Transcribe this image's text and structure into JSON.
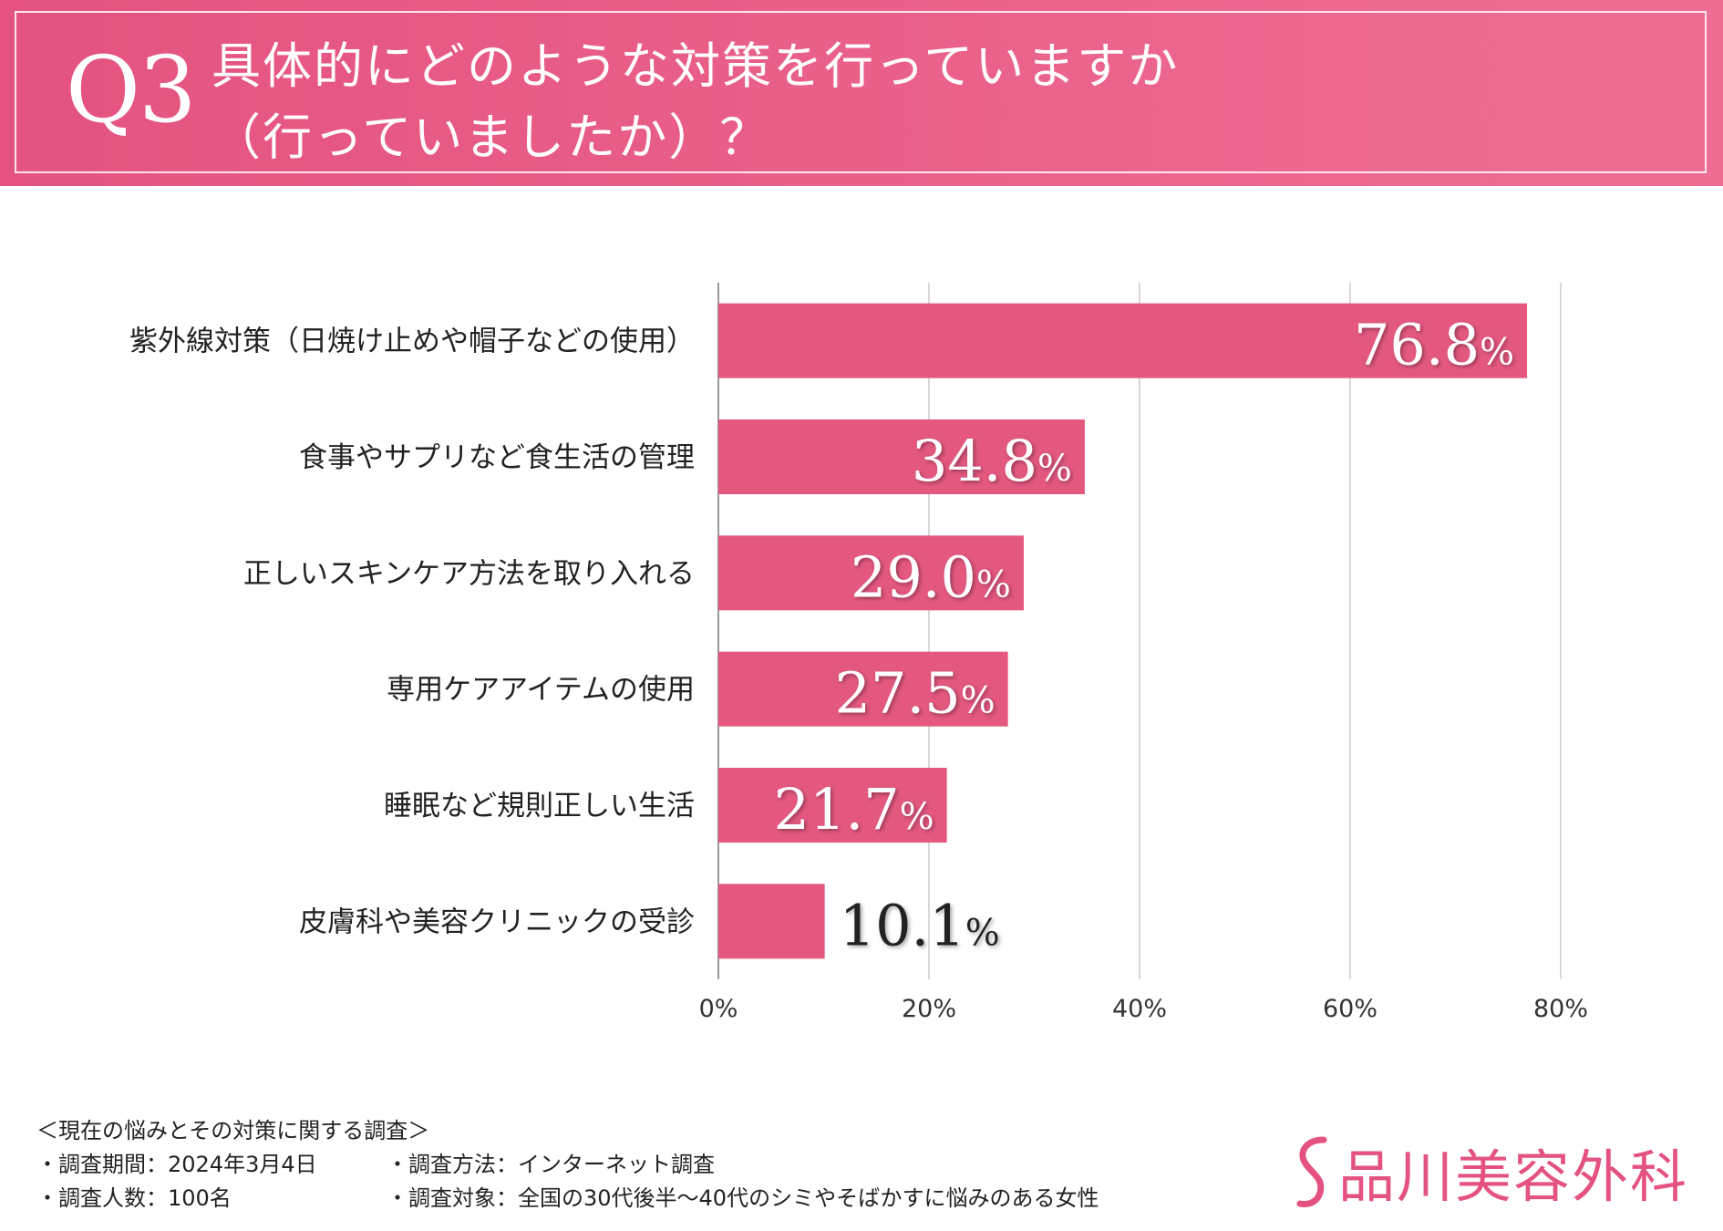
{
  "header": {
    "q_number": "Q3",
    "title_line1": "具体的にどのような対策を行っていますか",
    "title_line2": "（行っていましたか）？"
  },
  "chart_data": {
    "type": "bar",
    "orientation": "horizontal",
    "categories": [
      "紫外線対策（日焼け止めや帽子などの使用）",
      "食事やサプリなど食生活の管理",
      "正しいスキンケア方法を取り入れる",
      "専用ケアアイテムの使用",
      "睡眠など規則正しい生活",
      "皮膚科や美容クリニックの受診"
    ],
    "values": [
      76.8,
      34.8,
      29.0,
      27.5,
      21.7,
      10.1
    ],
    "value_labels": [
      "76.8",
      "34.8",
      "29.0",
      "27.5",
      "21.7",
      "10.1"
    ],
    "value_suffix": "%",
    "xlim": [
      0,
      80
    ],
    "xticks": [
      0,
      20,
      40,
      60,
      80
    ],
    "xtick_labels": [
      "0%",
      "20%",
      "40%",
      "60%",
      "80%"
    ],
    "grid": true,
    "bar_color": "#e4587f",
    "title": "",
    "xlabel": "",
    "ylabel": ""
  },
  "footer": {
    "heading": "＜現在の悩みとその対策に関する調査＞",
    "period": "・調査期間：2024年3月4日",
    "method": "・調査方法：インターネット調査",
    "count": "・調査人数：100名",
    "target": "・調査対象：全国の30代後半～40代のシミやそばかすに悩みのある女性"
  },
  "logo": {
    "text": "品川美容外科"
  },
  "colors": {
    "accent": "#e4537f",
    "grid": "#cccccc",
    "axis": "#999999"
  }
}
